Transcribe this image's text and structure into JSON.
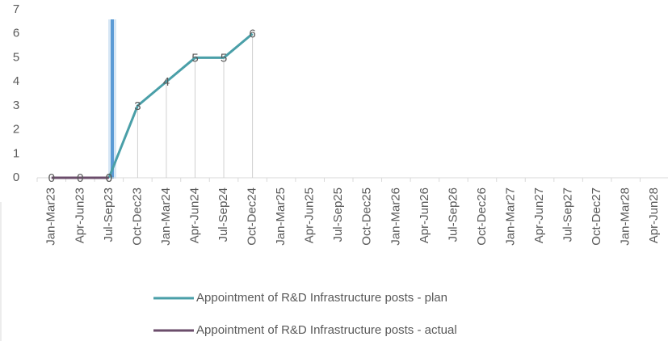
{
  "chart_data": {
    "type": "line",
    "categories": [
      "Jan-Mar23",
      "Apr-Jun23",
      "Jul-Sep23",
      "Oct-Dec23",
      "Jan-Mar24",
      "Apr-Jun24",
      "Jul-Sep24",
      "Oct-Dec24",
      "Jan-Mar25",
      "Apr-Jun25",
      "Jul-Sep25",
      "Oct-Dec25",
      "Jan-Mar26",
      "Apr-Jun26",
      "Jul-Sep26",
      "Oct-Dec26",
      "Jan-Mar27",
      "Apr-Jun27",
      "Jul-Sep27",
      "Oct-Dec27",
      "Jan-Mar28",
      "Apr-Jun28"
    ],
    "series": [
      {
        "name": "Appointment of R&D Infrastructure posts - plan",
        "color": "#4a9fa8",
        "values": [
          null,
          null,
          0,
          3,
          4,
          5,
          5,
          6,
          null,
          null,
          null,
          null,
          null,
          null,
          null,
          null,
          null,
          null,
          null,
          null,
          null,
          null
        ]
      },
      {
        "name": "Appointment of R&D Infrastructure posts - actual",
        "color": "#6b4d6b",
        "values": [
          0,
          0,
          0,
          null,
          null,
          null,
          null,
          null,
          null,
          null,
          null,
          null,
          null,
          null,
          null,
          null,
          null,
          null,
          null,
          null,
          null,
          null
        ]
      }
    ],
    "ylim": [
      0,
      7
    ],
    "yticks": [
      0,
      1,
      2,
      3,
      4,
      5,
      6,
      7
    ],
    "drop_lines": true
  }
}
